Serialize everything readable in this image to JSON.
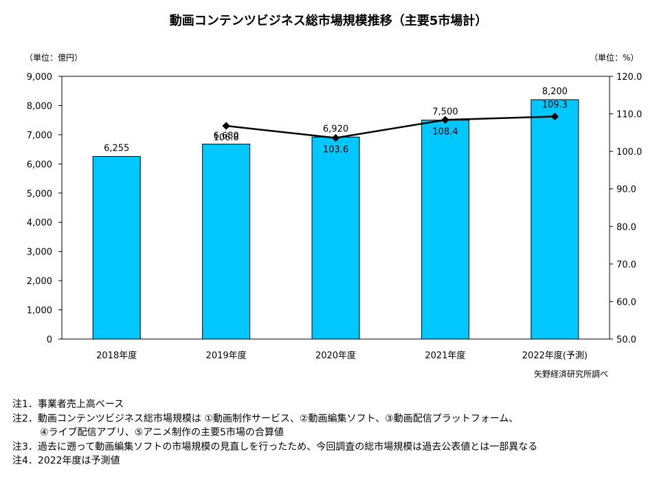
{
  "chart_data": {
    "type": "bar+line",
    "title": "動画コンテンツビジネス総市場規模推移（主要5市場計）",
    "categories": [
      "2018年度",
      "2019年度",
      "2020年度",
      "2021年度",
      "2022年度(予測)"
    ],
    "y_left": {
      "unit_label": "（単位：億円）",
      "ylim": [
        0,
        9000
      ],
      "ticks": [
        "0",
        "1,000",
        "2,000",
        "3,000",
        "4,000",
        "5,000",
        "6,000",
        "7,000",
        "8,000",
        "9,000"
      ]
    },
    "y_right": {
      "unit_label": "（単位：%）",
      "ylim": [
        50,
        120
      ],
      "ticks": [
        "50.0",
        "60.0",
        "70.0",
        "80.0",
        "90.0",
        "100.0",
        "110.0",
        "120.0"
      ]
    },
    "series": [
      {
        "type": "bar",
        "values": [
          6255,
          6680,
          6920,
          7500,
          8200
        ],
        "labels": [
          "6,255",
          "6,680",
          "6,920",
          "7,500",
          "8,200"
        ],
        "color": "#00c8ff"
      },
      {
        "type": "line",
        "values": [
          null,
          106.8,
          103.6,
          108.4,
          109.3
        ],
        "labels": [
          "",
          "106.8",
          "103.6",
          "108.4",
          "109.3"
        ],
        "color": "#000000"
      }
    ],
    "source": "矢野経済研究所調べ",
    "grid": false
  },
  "notes": [
    "注1．事業者売上高ベース",
    "注2．動画コンテンツビジネス総市場規模は ①動画制作サービス、②動画編集ソフト、③動画配信プラットフォーム、",
    "④ライブ配信アプリ、⑤アニメ制作の主要5市場の合算値",
    "注3．過去に遡って動画編集ソフトの市場規模の見直しを行ったため、今回調査の総市場規模は過去公表値とは一部異なる",
    "注4．2022年度は予測値"
  ]
}
